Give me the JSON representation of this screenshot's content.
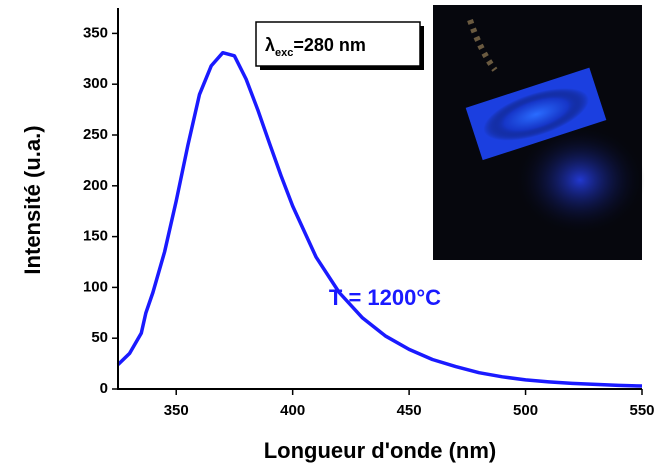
{
  "chart_data": {
    "type": "line",
    "x_label": "Longueur d'onde (nm)",
    "y_label": "Intensité (u.a.)",
    "annotation": "T = 1200°C",
    "excitation_label": {
      "symbol": "λ",
      "subscript": "exc",
      "text": "=280 nm"
    },
    "color": "#1a1aff",
    "x": [
      325,
      330,
      335,
      337,
      340,
      345,
      350,
      355,
      360,
      365,
      370,
      375,
      380,
      385,
      390,
      395,
      400,
      410,
      420,
      430,
      440,
      450,
      460,
      470,
      480,
      490,
      500,
      510,
      520,
      530,
      540,
      550
    ],
    "values": [
      24,
      35,
      55,
      75,
      95,
      135,
      185,
      240,
      290,
      318,
      331,
      328,
      305,
      275,
      242,
      210,
      180,
      130,
      95,
      70,
      52,
      39,
      29,
      22,
      16,
      12,
      9,
      7,
      5.5,
      4.5,
      3.5,
      3
    ],
    "xlim": [
      325,
      550
    ],
    "xticks": [
      350,
      400,
      450,
      500,
      550
    ],
    "ylim": [
      0,
      375
    ],
    "yticks": [
      0,
      50,
      100,
      150,
      200,
      250,
      300,
      350
    ]
  }
}
